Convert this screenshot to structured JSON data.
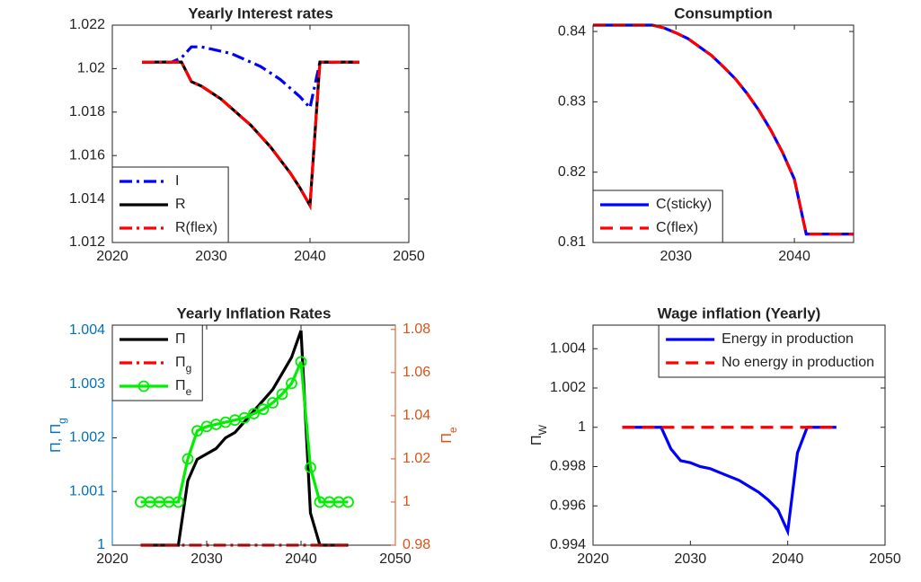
{
  "chart_data": [
    {
      "type": "line",
      "title": "Yearly Interest rates",
      "x": [
        2023,
        2024,
        2025,
        2026,
        2027,
        2028,
        2029,
        2030,
        2031,
        2032,
        2033,
        2034,
        2035,
        2036,
        2037,
        2038,
        2039,
        2040,
        2041,
        2042,
        2043,
        2044,
        2045
      ],
      "xlim": [
        2020,
        2050
      ],
      "xticks": [
        2020,
        2030,
        2040,
        2050
      ],
      "ylim": [
        1.012,
        1.022
      ],
      "yticks": [
        1.012,
        1.014,
        1.016,
        1.018,
        1.02,
        1.022
      ],
      "legend": "southwest",
      "series": [
        {
          "name": "I",
          "color": "#0000ff",
          "dash": "dashdot",
          "values": [
            1.0203,
            1.0203,
            1.0203,
            1.0203,
            1.0205,
            1.021,
            1.021,
            1.0209,
            1.0208,
            1.0207,
            1.0205,
            1.0203,
            1.0201,
            1.0198,
            1.0195,
            1.0191,
            1.0187,
            1.0182,
            1.0203,
            1.0203,
            1.0203,
            1.0203,
            1.0203
          ]
        },
        {
          "name": "R",
          "color": "#000000",
          "dash": "solid",
          "values": [
            1.0203,
            1.0203,
            1.0203,
            1.0203,
            1.0203,
            1.0194,
            1.0192,
            1.0189,
            1.0186,
            1.0182,
            1.0178,
            1.0174,
            1.0169,
            1.0164,
            1.0158,
            1.0152,
            1.0145,
            1.0137,
            1.0203,
            1.0203,
            1.0203,
            1.0203,
            1.0203
          ]
        },
        {
          "name": "R(flex)",
          "color": "#ff0000",
          "dash": "dashdot",
          "values": [
            1.0203,
            1.0203,
            1.0203,
            1.0203,
            1.0203,
            1.0194,
            1.0192,
            1.0189,
            1.0186,
            1.0182,
            1.0178,
            1.0174,
            1.0169,
            1.0164,
            1.0158,
            1.0152,
            1.0145,
            1.0137,
            1.0203,
            1.0203,
            1.0203,
            1.0203,
            1.0203
          ]
        }
      ]
    },
    {
      "type": "line",
      "title": "Consumption",
      "x": [
        2023,
        2024,
        2025,
        2026,
        2027,
        2028,
        2029,
        2030,
        2031,
        2032,
        2033,
        2034,
        2035,
        2036,
        2037,
        2038,
        2039,
        2040,
        2041,
        2042,
        2043,
        2044,
        2045
      ],
      "xlim": [
        2023,
        2045
      ],
      "xticks": [
        2030,
        2040
      ],
      "ylim": [
        0.81,
        0.8409
      ],
      "yticks": [
        0.81,
        0.82,
        0.83,
        0.84
      ],
      "legend": "southwest",
      "series": [
        {
          "name": "C(sticky)",
          "color": "#0000ff",
          "dash": "solid",
          "values": [
            0.8409,
            0.8409,
            0.8409,
            0.8409,
            0.8409,
            0.8409,
            0.8405,
            0.8398,
            0.839,
            0.8378,
            0.8366,
            0.835,
            0.8333,
            0.8312,
            0.8288,
            0.826,
            0.8228,
            0.819,
            0.8112,
            0.8112,
            0.8112,
            0.8112,
            0.8112
          ]
        },
        {
          "name": "C(flex)",
          "color": "#ff0000",
          "dash": "dashed",
          "values": [
            0.8409,
            0.8409,
            0.8409,
            0.8409,
            0.8409,
            0.8409,
            0.8405,
            0.8398,
            0.839,
            0.8378,
            0.8366,
            0.835,
            0.8333,
            0.8312,
            0.8288,
            0.826,
            0.8228,
            0.819,
            0.8112,
            0.8112,
            0.8112,
            0.8112,
            0.8112
          ]
        }
      ]
    },
    {
      "type": "line",
      "title": "Yearly Inflation Rates",
      "x": [
        2023,
        2024,
        2025,
        2026,
        2027,
        2028,
        2029,
        2030,
        2031,
        2032,
        2033,
        2034,
        2035,
        2036,
        2037,
        2038,
        2039,
        2040,
        2041,
        2042,
        2043,
        2044,
        2045
      ],
      "xlim": [
        2020,
        2050
      ],
      "xticks": [
        2020,
        2030,
        2040,
        2050
      ],
      "ylim": [
        1,
        1.0041
      ],
      "yticks": [
        1,
        1.001,
        1.002,
        1.003,
        1.004
      ],
      "y2lim": [
        0.98,
        1.082
      ],
      "y2ticks": [
        0.98,
        1,
        1.02,
        1.04,
        1.06,
        1.08
      ],
      "ylabel": "Π, Πg",
      "y2label": "Πe",
      "y_color": "#0072bd",
      "y2_color": "#d95319",
      "legend": "northwest",
      "series": [
        {
          "name": "Π",
          "color": "#000000",
          "dash": "solid",
          "values": [
            1,
            1,
            1,
            1,
            1,
            1.0012,
            1.0016,
            1.0017,
            1.0018,
            1.002,
            1.0021,
            1.0023,
            1.0025,
            1.0027,
            1.0029,
            1.0032,
            1.0035,
            1.004,
            1.0006,
            1,
            1,
            1,
            1
          ]
        },
        {
          "name": "Πg",
          "color": "#ff0000",
          "dash": "dashdot",
          "values": [
            1,
            1,
            1,
            1,
            1,
            1,
            1,
            1,
            1,
            1,
            1,
            1,
            1,
            1,
            1,
            1,
            1,
            1,
            1,
            1,
            1,
            1,
            1
          ]
        },
        {
          "name": "Πe",
          "color": "#00ee00",
          "dash": "solid",
          "marker": "circle",
          "axis": "y2",
          "values": [
            1,
            1,
            1,
            1,
            1,
            1.02,
            1.033,
            1.035,
            1.036,
            1.037,
            1.038,
            1.039,
            1.041,
            1.043,
            1.046,
            1.05,
            1.055,
            1.065,
            1.016,
            1,
            1,
            1,
            1
          ]
        }
      ]
    },
    {
      "type": "line",
      "title": "Wage inflation (Yearly)",
      "x": [
        2023,
        2024,
        2025,
        2026,
        2027,
        2028,
        2029,
        2030,
        2031,
        2032,
        2033,
        2034,
        2035,
        2036,
        2037,
        2038,
        2039,
        2040,
        2041,
        2042,
        2043,
        2044,
        2045
      ],
      "xlim": [
        2020,
        2050
      ],
      "xticks": [
        2020,
        2030,
        2040,
        2050
      ],
      "ylim": [
        0.994,
        1.0052
      ],
      "yticks": [
        0.994,
        0.996,
        0.998,
        1,
        1.002,
        1.004
      ],
      "ylabel": "ΠW",
      "legend": "northeast",
      "series": [
        {
          "name": "Energy in production",
          "color": "#0000ff",
          "dash": "solid",
          "values": [
            1,
            1,
            1,
            1,
            1,
            0.9989,
            0.9983,
            0.9982,
            0.998,
            0.9979,
            0.9977,
            0.9975,
            0.9973,
            0.997,
            0.9967,
            0.9963,
            0.9958,
            0.9947,
            0.9987,
            1,
            1,
            1,
            1
          ]
        },
        {
          "name": "No energy in production",
          "color": "#ff0000",
          "dash": "dashed",
          "values": [
            1,
            1,
            1,
            1,
            1,
            1,
            1,
            1,
            1,
            1,
            1,
            1,
            1,
            1,
            1,
            1,
            1,
            1,
            1,
            1,
            1,
            1,
            1
          ]
        }
      ]
    }
  ]
}
